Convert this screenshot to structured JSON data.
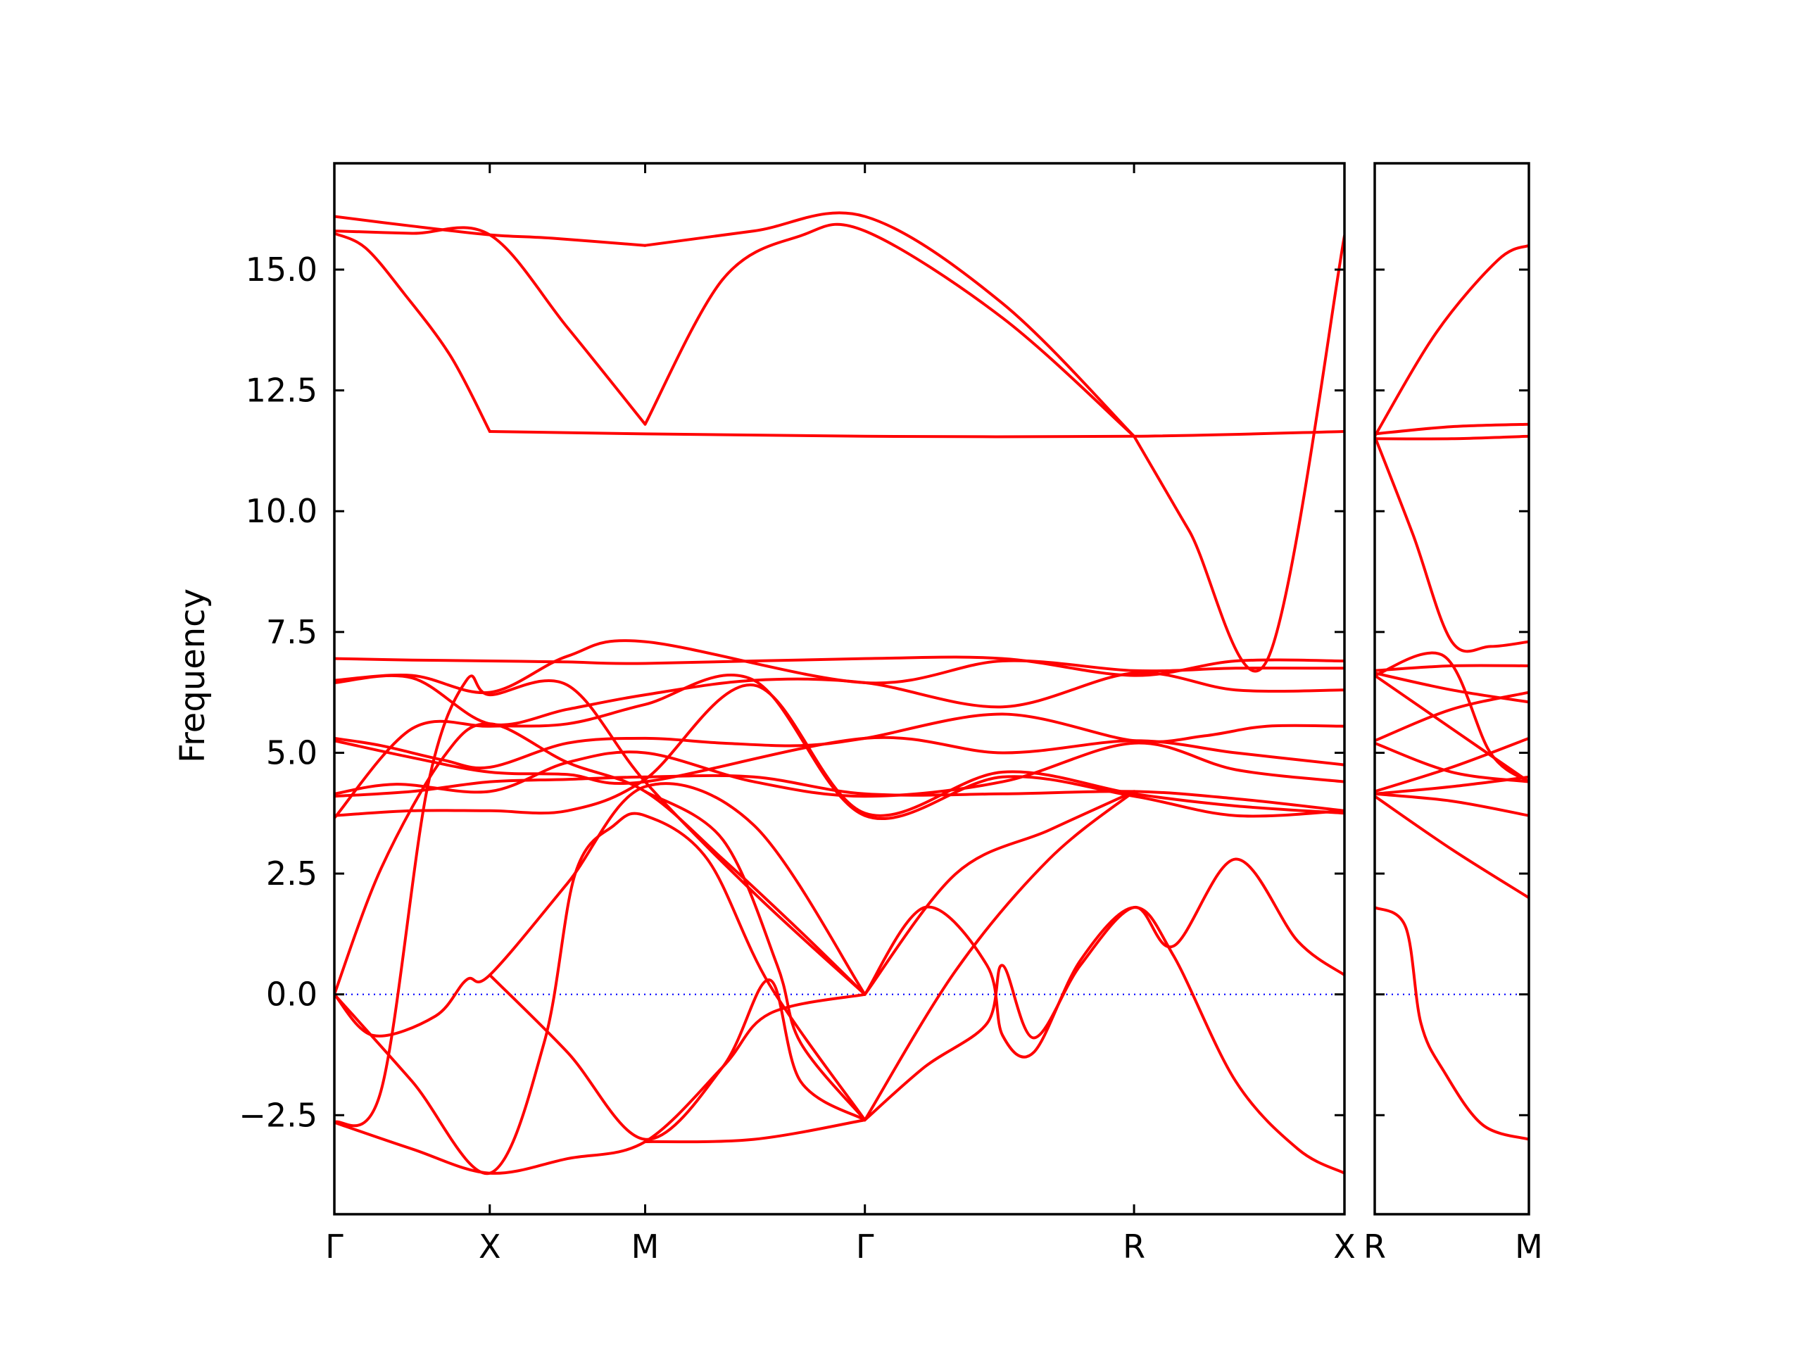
{
  "chart_data": {
    "type": "line",
    "title": "",
    "ylabel": "Frequency",
    "xlabel": "",
    "ylim": [
      -4.55,
      17.2
    ],
    "yticks": [
      -2.5,
      0.0,
      2.5,
      5.0,
      7.5,
      10.0,
      12.5,
      15.0
    ],
    "ytick_labels": [
      "−2.5",
      "0.0",
      "2.5",
      "5.0",
      "7.5",
      "10.0",
      "12.5",
      "15.0"
    ],
    "grid": false,
    "legend": "none",
    "colors": {
      "bands": "#ff0000",
      "zero_line": "#0000ff"
    },
    "panels": [
      {
        "name": "main",
        "x_range": [
          0,
          6.5
        ],
        "ticks": [
          {
            "x": 0,
            "label": "Γ"
          },
          {
            "x": 1,
            "label": "X"
          },
          {
            "x": 2,
            "label": "M"
          },
          {
            "x": 3.414,
            "label": "Γ"
          },
          {
            "x": 5.146,
            "label": "R"
          },
          {
            "x": 6.5,
            "label": "X"
          }
        ],
        "series": [
          {
            "x": [
              0,
              0.5,
              1,
              1.4,
              2
            ],
            "y": [
              16.1,
              15.9,
              15.72,
              15.65,
              15.5
            ]
          },
          {
            "x": [
              0,
              0.5,
              1,
              1.5,
              2
            ],
            "y": [
              15.8,
              15.75,
              15.72,
              13.8,
              11.8
            ]
          },
          {
            "x": [
              0,
              0.2,
              0.45,
              0.75,
              1
            ],
            "y": [
              15.75,
              15.45,
              14.5,
              13.2,
              11.65
            ]
          },
          {
            "x": [
              2,
              2.7,
              3.414,
              4.3,
              5.146
            ],
            "y": [
              15.5,
              15.8,
              16.1,
              14.3,
              11.55
            ]
          },
          {
            "x": [
              2,
              2.5,
              3,
              3.414,
              4.3,
              5.146
            ],
            "y": [
              11.8,
              14.8,
              15.7,
              15.8,
              14.0,
              11.55
            ]
          },
          {
            "x": [
              1,
              2,
              3.414,
              5.146,
              6.5
            ],
            "y": [
              11.65,
              11.6,
              11.55,
              11.55,
              11.65
            ]
          },
          {
            "x": [
              0,
              0.5,
              1,
              1.5,
              2,
              3.414,
              4.3,
              5.146,
              5.8,
              6.5
            ],
            "y": [
              6.95,
              6.92,
              6.9,
              6.88,
              6.85,
              6.95,
              6.95,
              6.6,
              6.9,
              6.9
            ]
          },
          {
            "x": [
              0,
              0.5,
              1,
              1.5,
              2,
              3.414,
              4.3,
              5.146,
              5.8,
              6.5
            ],
            "y": [
              6.5,
              6.6,
              6.25,
              7.0,
              7.3,
              6.45,
              6.9,
              6.7,
              6.75,
              6.75
            ]
          },
          {
            "x": [
              0,
              0.5,
              1,
              1.5,
              2,
              2.7,
              3.414,
              4.3,
              5.146,
              5.8,
              6.5
            ],
            "y": [
              6.45,
              6.55,
              5.6,
              5.9,
              6.2,
              6.5,
              6.45,
              5.95,
              6.65,
              6.3,
              6.3
            ]
          },
          {
            "x": [
              0,
              0.3,
              0.7,
              1,
              1.5,
              2,
              2.5,
              3,
              3.414,
              4.3,
              5.146,
              5.6,
              6,
              6.5
            ],
            "y": [
              5.3,
              5.15,
              4.85,
              4.7,
              5.2,
              5.3,
              5.2,
              5.15,
              5.3,
              5.8,
              5.25,
              5.35,
              5.55,
              5.55
            ]
          },
          {
            "x": [
              0,
              0.5,
              1,
              1.5,
              2,
              3.414,
              4.3,
              5.146,
              5.8,
              6.5
            ],
            "y": [
              5.25,
              4.9,
              4.6,
              4.55,
              4.4,
              5.3,
              5.0,
              5.25,
              5.0,
              4.75
            ]
          },
          {
            "x": [
              0,
              0.4,
              1,
              1.5,
              2,
              2.7,
              3.414,
              4.3,
              5.146,
              5.8,
              6.5
            ],
            "y": [
              4.15,
              4.35,
              4.2,
              4.8,
              5.0,
              4.4,
              4.1,
              4.4,
              5.2,
              4.65,
              4.4
            ]
          },
          {
            "x": [
              0,
              0.5,
              1,
              1.5,
              2,
              2.7,
              3.414,
              4.3,
              5.146,
              5.8,
              6.5
            ],
            "y": [
              4.1,
              4.2,
              4.4,
              4.45,
              4.5,
              4.5,
              4.15,
              4.15,
              4.2,
              4.05,
              3.8
            ]
          },
          {
            "x": [
              0,
              0.5,
              1,
              1.5,
              2,
              2.7,
              3.414,
              4.3,
              5.146,
              5.8,
              6.5
            ],
            "y": [
              3.7,
              3.8,
              3.8,
              3.8,
              4.45,
              6.4,
              3.75,
              4.6,
              4.15,
              3.9,
              3.75
            ]
          },
          {
            "x": [
              0,
              0.5,
              1,
              1.5,
              2,
              2.7,
              3.414,
              4.3,
              5.146,
              5.8,
              6.5
            ],
            "y": [
              3.65,
              5.5,
              5.55,
              5.6,
              6.0,
              6.5,
              3.7,
              4.5,
              4.1,
              3.7,
              3.8
            ]
          },
          {
            "x": [
              0,
              0.3,
              0.7,
              1,
              1.5,
              2,
              2.5,
              3,
              3.414
            ],
            "y": [
              0.0,
              2.6,
              4.9,
              5.6,
              4.8,
              4.2,
              2.8,
              1.3,
              0.0
            ]
          },
          {
            "x": [
              0,
              0.3,
              0.6,
              0.85,
              1,
              1.5,
              2,
              2.7,
              3.414
            ],
            "y": [
              -2.65,
              -2.0,
              4.3,
              6.5,
              6.2,
              6.4,
              4.4,
              2.1,
              0.0
            ]
          },
          {
            "x": [
              0,
              0.25,
              0.65,
              0.85,
              1,
              1.5,
              2,
              2.7,
              3.414
            ],
            "y": [
              0.0,
              -0.85,
              -0.45,
              0.3,
              0.4,
              2.3,
              4.3,
              3.5,
              0.0
            ]
          },
          {
            "x": [
              0,
              0.5,
              1,
              1.5,
              2,
              2.5,
              2.8,
              3.414
            ],
            "y": [
              -2.65,
              -3.2,
              -3.7,
              -3.4,
              -3.05,
              -1.5,
              -0.4,
              0.0
            ]
          },
          {
            "x": [
              0,
              0.5,
              1,
              1.35,
              1.55,
              1.8,
              2,
              2.4,
              2.8,
              3.414
            ],
            "y": [
              0.0,
              -1.8,
              -3.7,
              -1.0,
              2.5,
              3.5,
              3.7,
              2.8,
              0.2,
              -2.6
            ]
          },
          {
            "x": [
              1,
              1.5,
              2,
              2.5,
              2.8,
              3.0,
              3.414
            ],
            "y": [
              0.4,
              -1.2,
              -3.0,
              -1.5,
              0.3,
              -1.8,
              -2.6
            ]
          },
          {
            "x": [
              2,
              2.7,
              3.414
            ],
            "y": [
              -3.05,
              -3.0,
              -2.6
            ]
          },
          {
            "x": [
              2,
              2.5,
              2.85,
              3.0,
              3.414
            ],
            "y": [
              4.2,
              3.2,
              0.6,
              -1.0,
              -2.6
            ]
          },
          {
            "x": [
              3.414,
              3.8,
              4.2,
              4.3,
              4.5,
              4.8,
              5.146,
              5.4,
              5.8,
              6.2,
              6.5
            ],
            "y": [
              0.0,
              1.8,
              0.6,
              -0.85,
              -1.2,
              0.7,
              1.8,
              0.8,
              -1.8,
              -3.2,
              -3.7
            ]
          },
          {
            "x": [
              3.414,
              3.8,
              4.2,
              4.3,
              4.5,
              4.8,
              5.146,
              5.4,
              5.8,
              6.2,
              6.5
            ],
            "y": [
              -2.6,
              -1.5,
              -0.6,
              0.6,
              -0.9,
              0.6,
              1.8,
              1.0,
              2.8,
              1.1,
              0.4
            ]
          },
          {
            "x": [
              3.414,
              4.0,
              4.6,
              5.146
            ],
            "y": [
              0.0,
              2.5,
              3.4,
              4.2
            ]
          },
          {
            "x": [
              3.414,
              4.0,
              4.6,
              5.146
            ],
            "y": [
              -2.6,
              0.5,
              2.8,
              4.2
            ]
          },
          {
            "x": [
              5.146,
              5.5,
              6.0,
              6.5
            ],
            "y": [
              11.55,
              9.6,
              6.9,
              15.7
            ]
          }
        ]
      },
      {
        "name": "side",
        "x_range": [
          0,
          1
        ],
        "ticks": [
          {
            "x": 0,
            "label": "R"
          },
          {
            "x": 1,
            "label": "M"
          }
        ],
        "series": [
          {
            "x": [
              0,
              0.4,
              0.8,
              1
            ],
            "y": [
              11.55,
              13.7,
              15.2,
              15.5
            ]
          },
          {
            "x": [
              0,
              0.5,
              1
            ],
            "y": [
              11.6,
              11.75,
              11.8
            ]
          },
          {
            "x": [
              0,
              0.5,
              1
            ],
            "y": [
              11.5,
              11.5,
              11.55
            ]
          },
          {
            "x": [
              0,
              0.25,
              0.5,
              0.75,
              1
            ],
            "y": [
              11.55,
              9.5,
              7.3,
              7.2,
              7.3
            ]
          },
          {
            "x": [
              0,
              0.5,
              1
            ],
            "y": [
              6.7,
              6.8,
              6.8
            ]
          },
          {
            "x": [
              0,
              0.45,
              0.75,
              1
            ],
            "y": [
              6.6,
              7.0,
              5.0,
              4.4
            ]
          },
          {
            "x": [
              0,
              0.5,
              1
            ],
            "y": [
              6.65,
              6.3,
              6.05
            ]
          },
          {
            "x": [
              0,
              0.5,
              1
            ],
            "y": [
              6.6,
              5.5,
              4.4
            ]
          },
          {
            "x": [
              0,
              0.5,
              1
            ],
            "y": [
              5.25,
              5.9,
              6.25
            ]
          },
          {
            "x": [
              0,
              0.5,
              1
            ],
            "y": [
              5.2,
              4.6,
              4.4
            ]
          },
          {
            "x": [
              0,
              0.5,
              1
            ],
            "y": [
              4.2,
              4.7,
              5.3
            ]
          },
          {
            "x": [
              0,
              0.5,
              1
            ],
            "y": [
              4.15,
              4.3,
              4.5
            ]
          },
          {
            "x": [
              0,
              0.5,
              1
            ],
            "y": [
              4.15,
              4.0,
              3.7
            ]
          },
          {
            "x": [
              0,
              0.5,
              1
            ],
            "y": [
              4.1,
              3.0,
              2.0
            ]
          },
          {
            "x": [
              0,
              0.2,
              0.3,
              0.45,
              0.7,
              1
            ],
            "y": [
              1.8,
              1.4,
              -0.6,
              -1.6,
              -2.7,
              -3.0
            ]
          }
        ]
      }
    ]
  }
}
